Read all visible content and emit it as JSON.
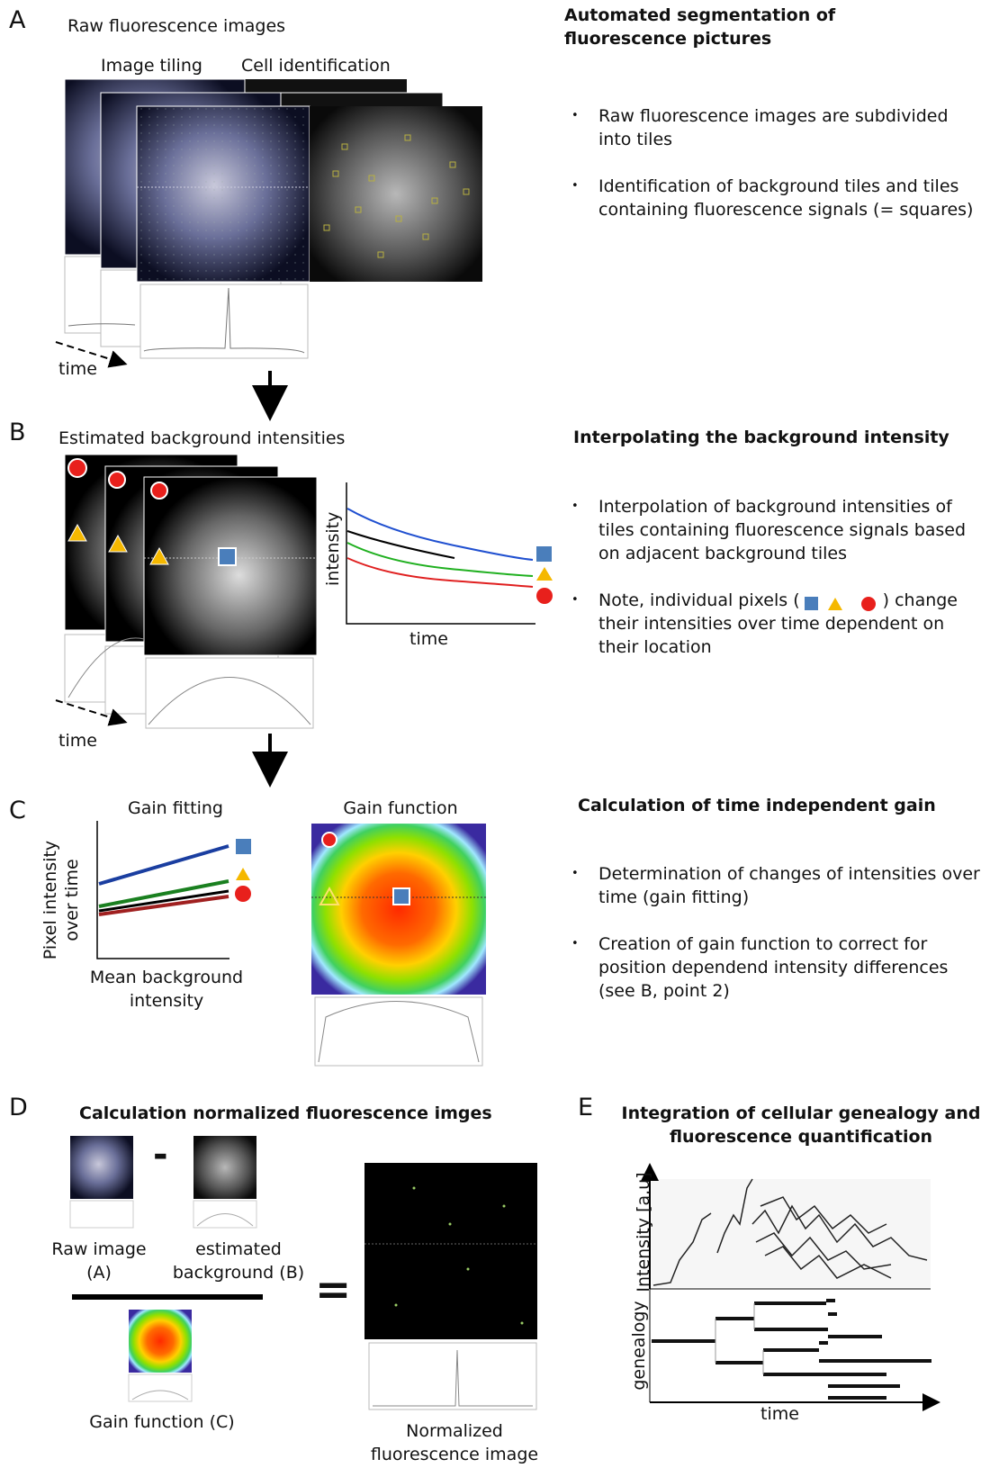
{
  "panel_a": {
    "letter": "A",
    "title": "Raw fluorescence images",
    "label_tiling": "Image tiling",
    "label_cells": "Cell identification",
    "time_label": "time",
    "heading": "Automated segmentation of fluorescence pictures",
    "bullets": [
      "Raw fluorescence images are subdivided into tiles",
      "Identification of background tiles and tiles containing fluorescence signals (= squares)"
    ]
  },
  "panel_b": {
    "letter": "B",
    "title": "Estimated background intensities",
    "y_label": "intensity",
    "x_label": "time",
    "time_label": "time",
    "heading": "Interpolating the background intensity",
    "bullet_1": "Interpolation of background intensities of tiles containing fluorescence signals based on adjacent background tiles",
    "bullet_2_start": "Note, individual pixels (",
    "bullet_2_end": ") change their intensities over time dependent on their location"
  },
  "panel_c": {
    "letter": "C",
    "title_fit": "Gain fitting",
    "y_label": "Pixel intensity over time",
    "x_label": "Mean background intensity",
    "title_gain": "Gain function",
    "heading": "Calculation of time independent gain",
    "bullets": [
      "Determination of changes of intensities over time (gain fitting)",
      "Creation of gain function to correct for position dependend intensity differences (see B, point 2)"
    ]
  },
  "panel_d": {
    "letter": "D",
    "heading": "Calculation normalized fluorescence imges",
    "minus": "-",
    "equals": "=",
    "raw_label": "Raw image (A)",
    "background_label": "estimated background (B)",
    "gain_label": "Gain function (C)",
    "result_label": "Normalized fluorescence image"
  },
  "panel_e": {
    "letter": "E",
    "heading": "Integration of cellular genealogy and fluorescence quantification",
    "y_top": "Intensity [a.u]",
    "y_bottom": "genealogy",
    "x_label": "time"
  }
}
